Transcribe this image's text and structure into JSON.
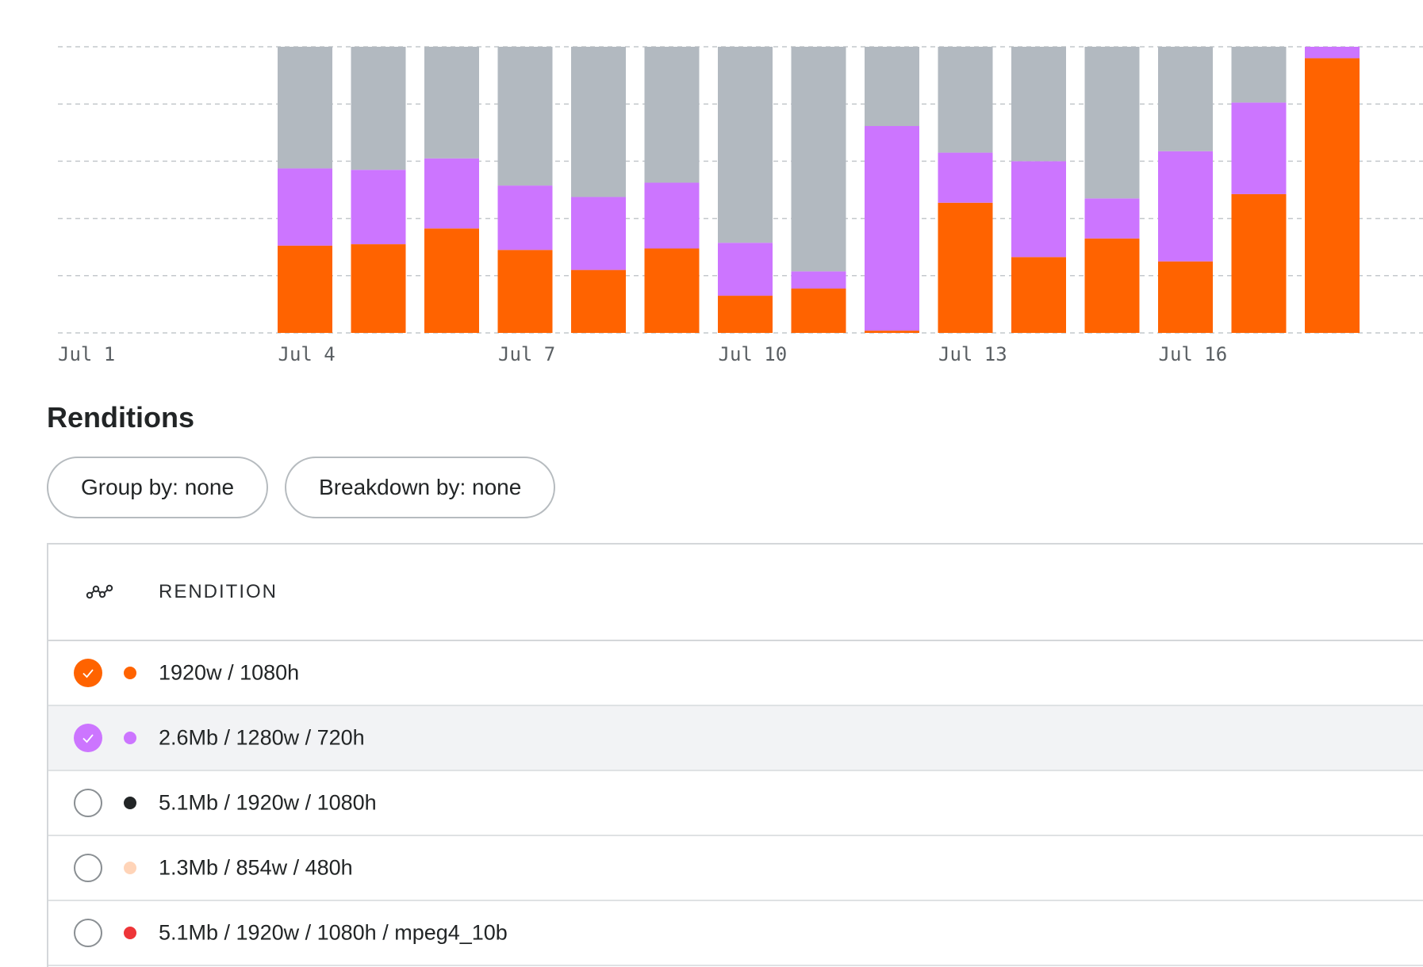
{
  "chart_data": {
    "type": "bar",
    "stacked": true,
    "categories": [
      "Jul 1",
      "Jul 2",
      "Jul 3",
      "Jul 4",
      "Jul 5",
      "Jul 6",
      "Jul 7",
      "Jul 8",
      "Jul 9",
      "Jul 10",
      "Jul 11",
      "Jul 12",
      "Jul 13",
      "Jul 14",
      "Jul 15",
      "Jul 16",
      "Jul 17",
      "Jul 18"
    ],
    "tick_labels": [
      "Jul 1",
      "Jul 4",
      "Jul 7",
      "Jul 10",
      "Jul 13",
      "Jul 16"
    ],
    "ylim": [
      0,
      100
    ],
    "grid": true,
    "series": [
      {
        "name": "1920w / 1080h",
        "color": "#ff6300",
        "values": [
          0,
          0,
          0,
          30.5,
          31,
          36.5,
          29,
          22,
          29.5,
          13,
          15.5,
          0.8,
          45.5,
          26.5,
          33,
          25,
          48.5,
          96
        ]
      },
      {
        "name": "2.6Mb / 1280w / 720h",
        "color": "#cc75ff",
        "values": [
          0,
          0,
          0,
          27,
          26,
          24.5,
          22.5,
          25.5,
          23,
          18.5,
          6,
          71.5,
          17.5,
          33.5,
          14,
          38.5,
          32,
          4
        ]
      },
      {
        "name": "",
        "color": "#b2b9c0",
        "values": [
          0,
          0,
          0,
          42.5,
          43,
          39,
          48.5,
          52.5,
          47.5,
          68.5,
          78.5,
          27.7,
          37,
          40,
          53,
          36.5,
          19.5,
          0
        ]
      }
    ]
  },
  "renditions": {
    "title": "Renditions",
    "group_by_label": "Group by: none",
    "breakdown_by_label": "Breakdown by: none",
    "column_header": "RENDITION",
    "chart_toggle_icon": "line-chart-icon",
    "rows": [
      {
        "label": "1920w / 1080h",
        "color": "#ff6300",
        "checked": true,
        "highlighted": false
      },
      {
        "label": "2.6Mb / 1280w / 720h",
        "color": "#cc75ff",
        "checked": true,
        "highlighted": true
      },
      {
        "label": "5.1Mb / 1920w / 1080h",
        "color": "#222526",
        "checked": false,
        "highlighted": false
      },
      {
        "label": "1.3Mb / 854w / 480h",
        "color": "#ffd4b8",
        "checked": false,
        "highlighted": false
      },
      {
        "label": "5.1Mb / 1920w / 1080h / mpeg4_10b",
        "color": "#ee3538",
        "checked": false,
        "highlighted": false
      }
    ]
  }
}
